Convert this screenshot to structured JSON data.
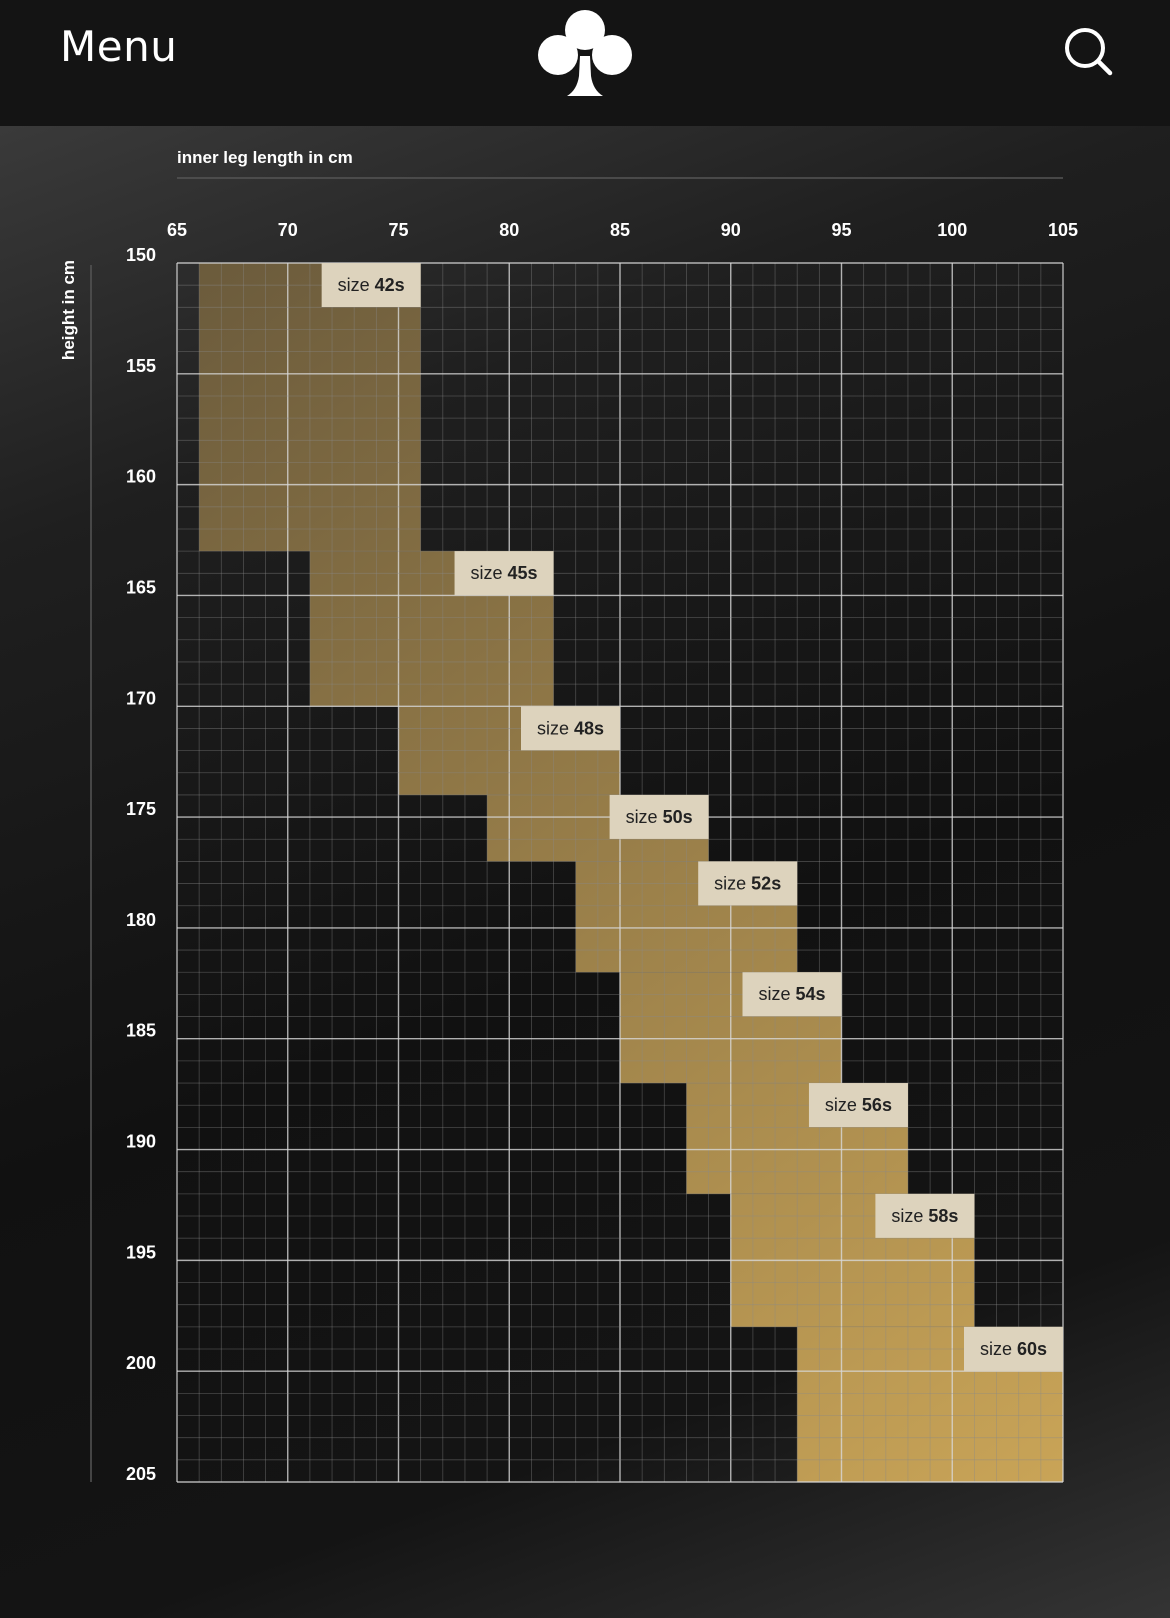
{
  "header": {
    "menu_label": "Menu",
    "logo_icon": "club-suit-icon",
    "search_icon": "search-icon"
  },
  "colors": {
    "background": "#141414",
    "header_background": "#141414",
    "grid_line": "#8a8a8a",
    "size_box_light": "#6b5b3c",
    "size_box_dark": "#c9a457",
    "label_background": "#ddd3bd",
    "label_text": "#222222"
  },
  "chart_data": {
    "type": "heatmap",
    "title": "",
    "xlabel": "inner leg length in cm",
    "ylabel": "height in cm",
    "xlim": [
      65,
      105
    ],
    "ylim": [
      150,
      205
    ],
    "x_ticks": [
      65,
      70,
      75,
      80,
      85,
      90,
      95,
      100,
      105
    ],
    "y_ticks": [
      150,
      155,
      160,
      165,
      170,
      175,
      180,
      185,
      190,
      195,
      200,
      205
    ],
    "grid": true,
    "minor_grid_step": 1,
    "sizes": [
      {
        "label_prefix": "size",
        "label_bold": "42s",
        "inner_leg": [
          66,
          76
        ],
        "height": [
          150,
          163
        ]
      },
      {
        "label_prefix": "size",
        "label_bold": "45s",
        "inner_leg": [
          71,
          82
        ],
        "height": [
          163,
          170
        ]
      },
      {
        "label_prefix": "size",
        "label_bold": "48s",
        "inner_leg": [
          75,
          85
        ],
        "height": [
          170,
          174
        ]
      },
      {
        "label_prefix": "size",
        "label_bold": "50s",
        "inner_leg": [
          79,
          89
        ],
        "height": [
          174,
          177
        ]
      },
      {
        "label_prefix": "size",
        "label_bold": "52s",
        "inner_leg": [
          83,
          93
        ],
        "height": [
          177,
          182
        ]
      },
      {
        "label_prefix": "size",
        "label_bold": "54s",
        "inner_leg": [
          85,
          95
        ],
        "height": [
          182,
          187
        ]
      },
      {
        "label_prefix": "size",
        "label_bold": "56s",
        "inner_leg": [
          88,
          98
        ],
        "height": [
          187,
          192
        ]
      },
      {
        "label_prefix": "size",
        "label_bold": "58s",
        "inner_leg": [
          90,
          101
        ],
        "height": [
          192,
          198
        ]
      },
      {
        "label_prefix": "size",
        "label_bold": "60s",
        "inner_leg": [
          93,
          105
        ],
        "height": [
          198,
          205
        ]
      }
    ]
  }
}
